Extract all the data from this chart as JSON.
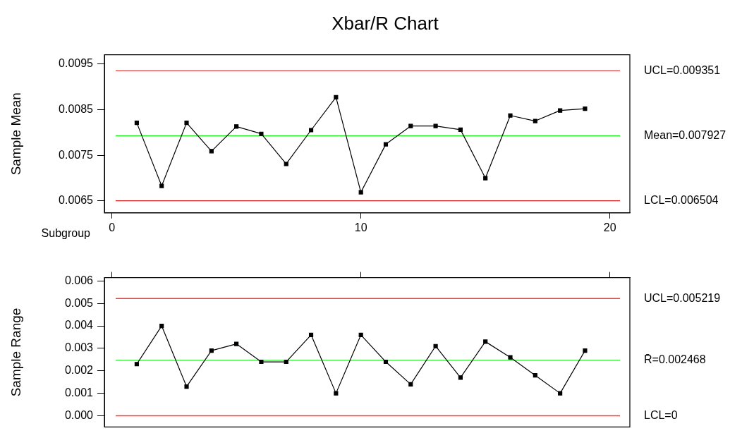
{
  "chart_data": [
    {
      "type": "line",
      "title": "Xbar/R Chart",
      "xlabel": "Subgroup",
      "ylabel": "Sample Mean",
      "x": [
        1,
        2,
        3,
        4,
        5,
        6,
        7,
        8,
        9,
        10,
        11,
        12,
        13,
        14,
        15,
        16,
        17,
        18,
        19
      ],
      "series": [
        {
          "color": "#000000",
          "values": [
            0.00821,
            0.00683,
            0.00821,
            0.00759,
            0.00813,
            0.00797,
            0.00731,
            0.00805,
            0.00877,
            0.00669,
            0.00774,
            0.00814,
            0.00814,
            0.00806,
            0.007,
            0.00837,
            0.00825,
            0.00848,
            0.00852
          ]
        }
      ],
      "xlim": [
        -0.3,
        20.8
      ],
      "xticks": [
        0,
        10,
        20
      ],
      "ylim": [
        0.00624,
        0.0097
      ],
      "yticks": [
        0.0065,
        0.0075,
        0.0085,
        0.0095
      ],
      "ref_lines": [
        {
          "axis": "y",
          "value": 0.009351,
          "label": "UCL=0.009351",
          "color": "#ff3333"
        },
        {
          "axis": "y",
          "value": 0.007927,
          "label": "Mean=0.007927",
          "color": "#22ee22"
        },
        {
          "axis": "y",
          "value": 0.006504,
          "label": "LCL=0.006504",
          "color": "#dd2222"
        }
      ],
      "marker": "square",
      "grid": false,
      "legend": false
    },
    {
      "type": "line",
      "ylabel": "Sample Range",
      "x": [
        1,
        2,
        3,
        4,
        5,
        6,
        7,
        8,
        9,
        10,
        11,
        12,
        13,
        14,
        15,
        16,
        17,
        18,
        19
      ],
      "series": [
        {
          "color": "#000000",
          "values": [
            0.0023,
            0.004,
            0.0013,
            0.0029,
            0.0032,
            0.0024,
            0.0024,
            0.0036,
            0.001,
            0.0036,
            0.0024,
            0.0014,
            0.0031,
            0.0017,
            0.0033,
            0.0026,
            0.0018,
            0.001,
            0.0029
          ]
        }
      ],
      "xlim": [
        -0.3,
        20.8
      ],
      "xticks": [
        {
          "value": 0,
          "label": null
        },
        {
          "value": 10,
          "label": null
        },
        {
          "value": 20,
          "label": null
        }
      ],
      "ylim": [
        -0.0005,
        0.00615
      ],
      "yticks": [
        {
          "value": 0,
          "label": "0.000"
        },
        0.001,
        0.002,
        0.003,
        0.004,
        0.005,
        0.006
      ],
      "ref_lines": [
        {
          "axis": "y",
          "value": 0.005219,
          "label": "UCL=0.005219",
          "color": "#ff3333"
        },
        {
          "axis": "y",
          "value": 0.002468,
          "label": "R̄=0.002468",
          "color": "#22ee22"
        },
        {
          "axis": "y",
          "value": 0,
          "label": "LCL=0",
          "color": "#ff3333"
        }
      ],
      "tick_labels": "y",
      "marker": "square",
      "grid": false,
      "legend": false
    }
  ]
}
